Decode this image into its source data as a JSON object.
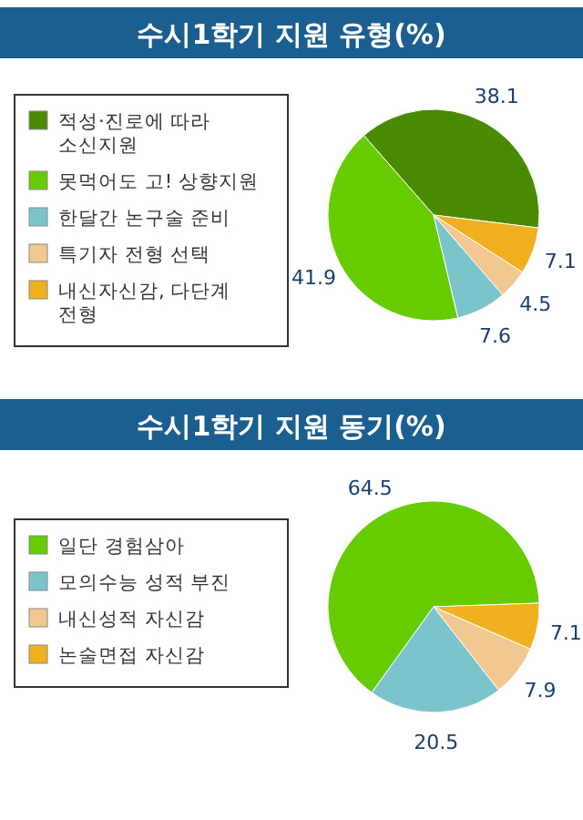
{
  "chart_data": [
    {
      "type": "pie",
      "title": "수시1학기 지원 유형(%)",
      "categories": [
        "적성·진로에 따라 소신지원",
        "못먹어도 고! 상향지원",
        "한달간 논구술 준비",
        "특기자 전형 선택",
        "내신자신감, 다단계 전형"
      ],
      "values": [
        38.1,
        41.9,
        7.6,
        4.5,
        7.1
      ],
      "colors": [
        "#4a8a00",
        "#66cc00",
        "#7cc4cc",
        "#f0c890",
        "#f0b020"
      ],
      "legend": "left",
      "data_labels": true
    },
    {
      "type": "pie",
      "title": "수시1학기 지원 동기(%)",
      "categories": [
        "일단 경험삼아",
        "모의수능 성적 부진",
        "내신성적 자신감",
        "논술면접 자신감"
      ],
      "values": [
        64.5,
        20.5,
        7.9,
        7.1
      ],
      "colors": [
        "#66cc00",
        "#7cc4cc",
        "#f0c890",
        "#f0b020"
      ],
      "legend": "left",
      "data_labels": true
    }
  ]
}
